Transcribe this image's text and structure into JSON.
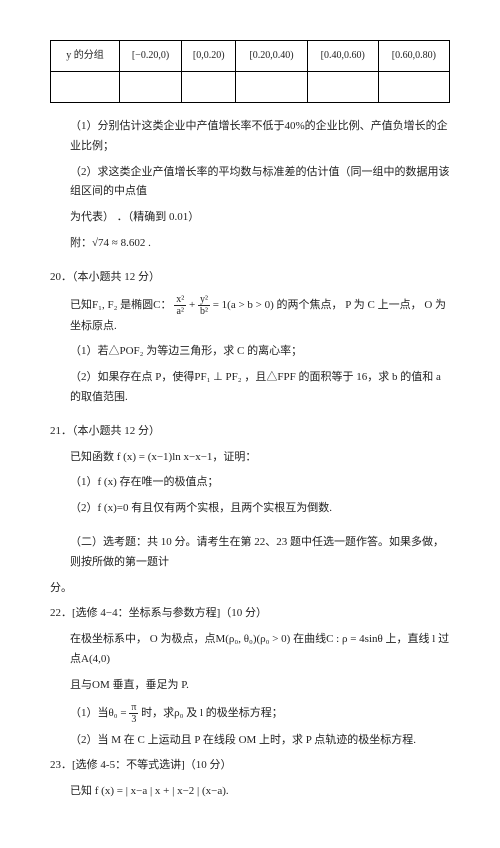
{
  "table": {
    "row_label": "y 的分组",
    "cells": [
      "[−0.20,0)",
      "[0,0.20)",
      "[0.20,0.40)",
      "[0.40,0.60)",
      "[0.60,0.80)"
    ]
  },
  "pre": {
    "p1": "（1）分别估计这类企业中产值增长率不低于40%的企业比例、产值负增长的企业比例；",
    "p2": "（2）求这类企业产值增长率的平均数与标准差的估计值（同一组中的数据用该组区间的中点值",
    "p2b": "为代表） ．（精确到 0.01）",
    "p3": "附：√74 ≈ 8.602 ."
  },
  "q20": {
    "head": "20．（本小题共 12 分）",
    "l1a": "已知F₁, F₂ 是椭圆C：",
    "l1b": " = 1(a > b > 0) 的两个焦点， P 为 C 上一点， O 为坐标原点.",
    "p1": "（1）若△POF₂ 为等边三角形，求 C 的离心率；",
    "p2": "（2）如果存在点 P，使得PF₁ ⊥ PF₂ ，且△FPF 的面积等于 16，求 b 的值和 a 的取值范围."
  },
  "q21": {
    "head": "21．（本小题共 12 分）",
    "l1": "已知函数 f (x) = (x−1)ln x−x−1，证明：",
    "p1": "（1）f (x) 存在唯一的极值点；",
    "p2": "（2）f (x)=0 有且仅有两个实根，且两个实根互为倒数."
  },
  "sec2": {
    "head": "（二）选考题：共 10 分。请考生在第 22、23 题中任选一题作答。如果多做，则按所做的第一题计",
    "head2": "分。"
  },
  "q22": {
    "head": "22．[选修 4−4：坐标系与参数方程]（10 分）",
    "l1": "在极坐标系中， O 为极点，点M(ρ₀, θ₀)(ρ₀ > 0) 在曲线C : ρ = 4sinθ 上，直线 l 过点A(4,0)",
    "l1b": "且与OM 垂直，垂足为 P.",
    "p1a": "（1）当θ₀ = ",
    "p1b": " 时，求ρ₀ 及 l 的极坐标方程；",
    "p2": "（2）当 M 在 C 上运动且 P 在线段 OM 上时，求 P 点轨迹的极坐标方程."
  },
  "q23": {
    "head": "23．[选修 4-5：不等式选讲]（10 分）",
    "l1": "已知 f (x) = | x−a | x + | x−2 | (x−a)."
  },
  "frac": {
    "x2": "x²",
    "a2": "a²",
    "y2": "y²",
    "b2": "b²",
    "pi": "π",
    "three": "3"
  }
}
